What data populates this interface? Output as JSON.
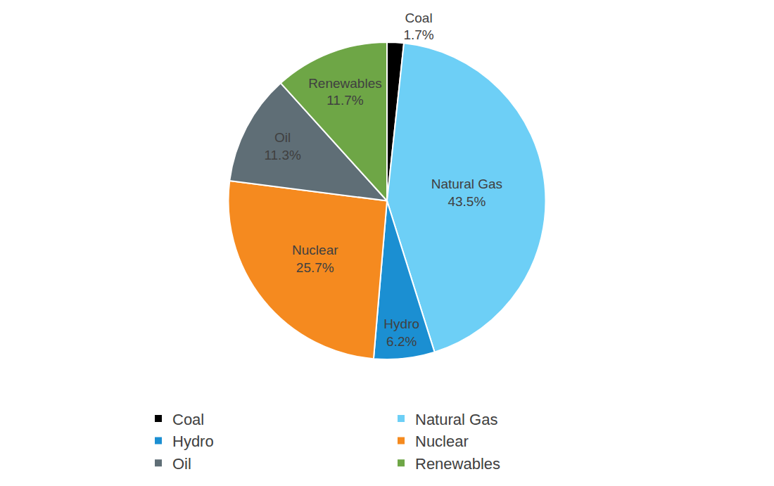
{
  "chart_data": {
    "type": "pie",
    "categories": [
      "Coal",
      "Natural Gas",
      "Hydro",
      "Nuclear",
      "Oil",
      "Renewables"
    ],
    "values": [
      1.7,
      43.5,
      6.2,
      25.7,
      11.3,
      11.7
    ],
    "value_labels": [
      "1.7%",
      "43.5%",
      "6.2%",
      "25.7%",
      "11.3%",
      "11.7%"
    ],
    "colors": [
      "#000000",
      "#6dcff6",
      "#1b8fd2",
      "#f58a1f",
      "#5f6e76",
      "#6ea646"
    ],
    "data_labels": true,
    "legend": "bottom"
  }
}
